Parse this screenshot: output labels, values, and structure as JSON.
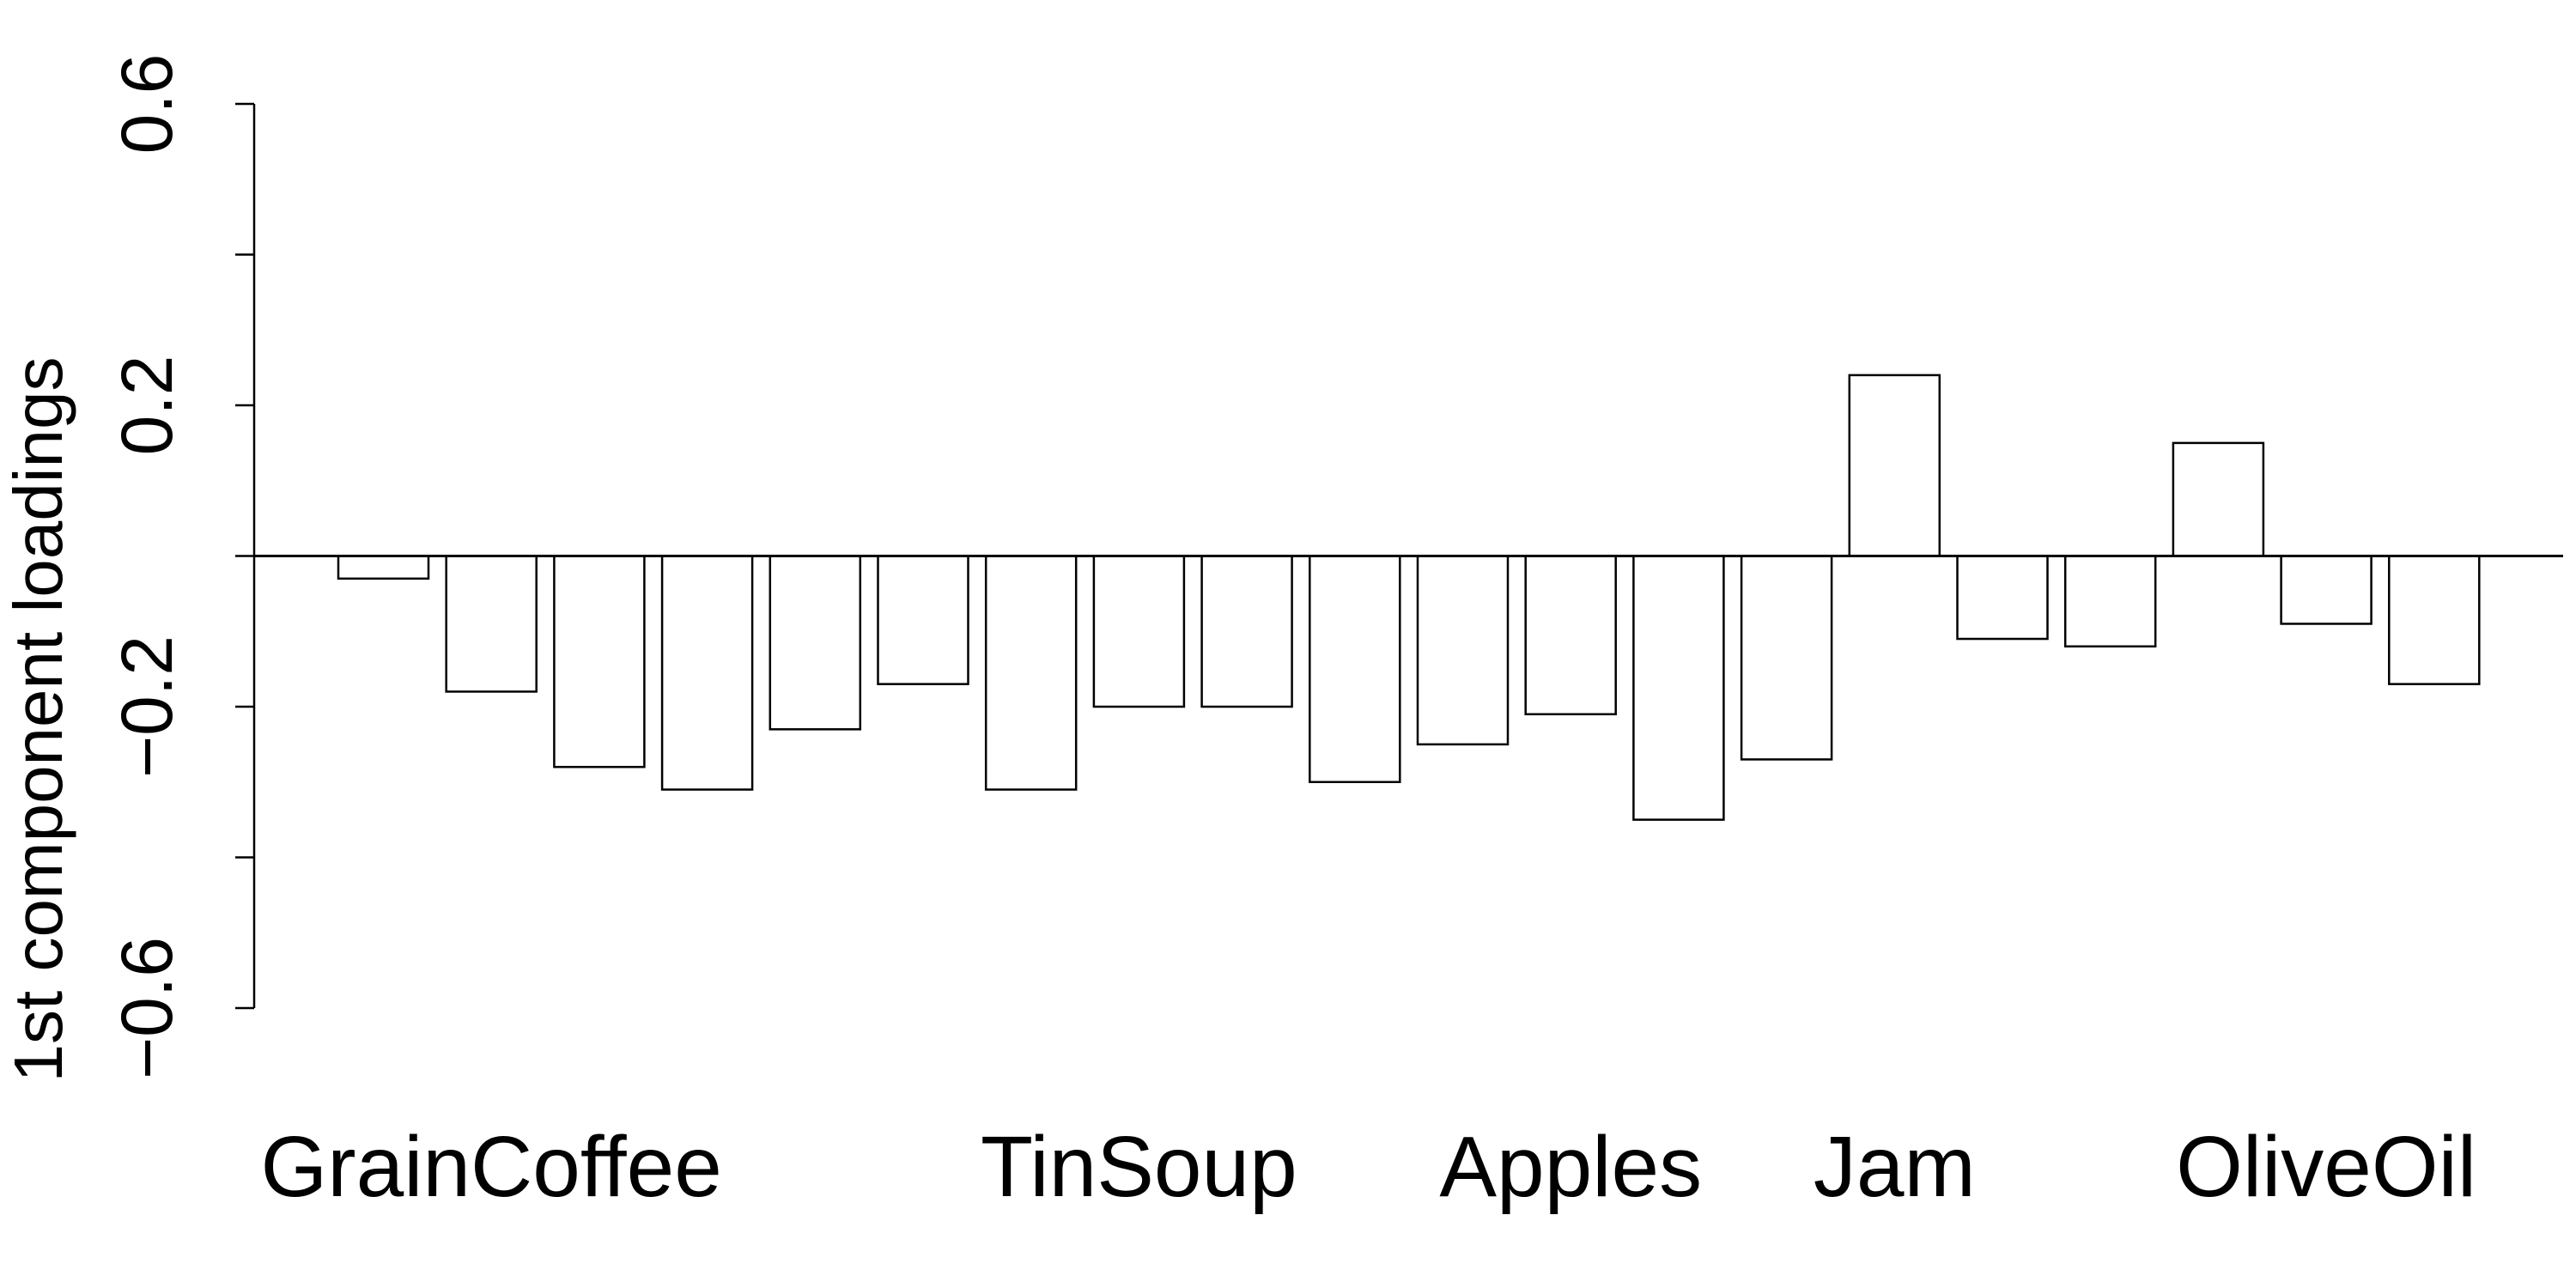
{
  "chart_data": {
    "type": "bar",
    "ylabel": "1st component loadings",
    "ylim": [
      -0.6,
      0.6
    ],
    "yticks": [
      -0.6,
      -0.4,
      -0.2,
      0,
      0.2,
      0.4,
      0.6
    ],
    "ytick_labels": [
      "−0.6",
      "",
      "−0.2",
      "",
      "0.2",
      "",
      "0.6"
    ],
    "category_labels": [
      {
        "label": "GrainCoffee",
        "bar_index": 1
      },
      {
        "label": "TinSoup",
        "bar_index": 7
      },
      {
        "label": "Apples",
        "bar_index": 11
      },
      {
        "label": "Jam",
        "bar_index": 14
      },
      {
        "label": "OliveOil",
        "bar_index": 18
      }
    ],
    "values": [
      -0.03,
      -0.18,
      -0.28,
      -0.31,
      -0.23,
      -0.17,
      -0.31,
      -0.2,
      -0.2,
      -0.3,
      -0.25,
      -0.21,
      -0.35,
      -0.27,
      0.24,
      -0.11,
      -0.12,
      0.15,
      -0.09,
      -0.17
    ],
    "zero_line": true,
    "grid": false,
    "colors": {
      "bar_fill": "#ffffff",
      "bar_stroke": "#000000"
    }
  }
}
